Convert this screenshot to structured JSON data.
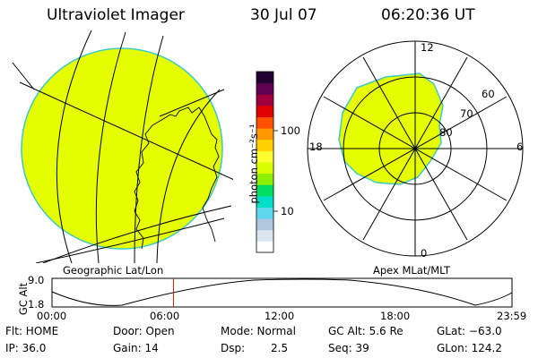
{
  "header": {
    "title": "Ultraviolet Imager",
    "date": "30 Jul 07",
    "time": "06:20:36 UT"
  },
  "left_panel": {
    "caption": "Geographic Lat/Lon"
  },
  "right_panel": {
    "caption": "Apex MLat/MLT",
    "mlt_labels": {
      "top": "12",
      "left": "18",
      "right": "6",
      "bottom": "0"
    },
    "mlat_labels": [
      "60",
      "70",
      "80"
    ]
  },
  "colorbar": {
    "label": "photon cm⁻²s⁻¹",
    "tick_100": "100",
    "tick_10": "10",
    "log_min": 0.35,
    "log_max": 2.6,
    "colors_bottom_to_top": [
      "#ffffff",
      "#dde6ee",
      "#b0c8dd",
      "#5ed8ee",
      "#00e0c8",
      "#00e060",
      "#8cf000",
      "#d8ff00",
      "#ffff30",
      "#ffd000",
      "#ff9800",
      "#ff5000",
      "#e00000",
      "#a00040",
      "#600050",
      "#200030"
    ]
  },
  "timeline": {
    "y_label": "GC Alt",
    "y_max": "9.0",
    "y_min": "1.8",
    "ticks": [
      "00:00",
      "06:00",
      "12:00",
      "18:00",
      "23:59"
    ],
    "current_hour": 6.34
  },
  "status": {
    "flt": "Flt: HOME",
    "door": "Door: Open",
    "mode": "Mode: Normal",
    "gcalt": "GC Alt: 5.6 Re",
    "glat": "GLat: −63.0",
    "ip": "IP: 36.0",
    "gain": "Gain: 14",
    "dsp_label": "Dsp:",
    "dsp_value": "2.5",
    "seq": "Seq: 39",
    "glon": "GLon: 124.2"
  },
  "colors": {
    "image_fill": "#e5ff00",
    "image_edge": "#3ec8c8",
    "marker": "#cc2200"
  }
}
